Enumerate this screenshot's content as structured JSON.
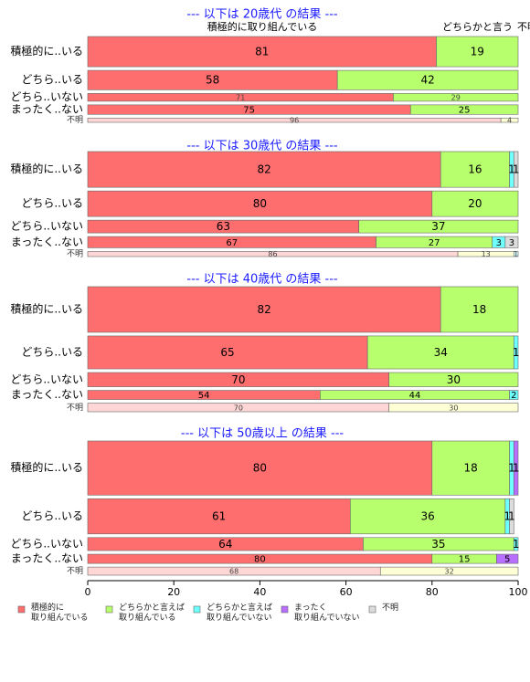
{
  "colors": {
    "seg": [
      "#ff6e6e",
      "#b8ff6e",
      "#6effff",
      "#b86eff",
      "#dcdcdc"
    ],
    "seg_light": [
      "#ffd6d6",
      "#ffffd6",
      "#d6ffff",
      "#e6d6ff",
      "#f0f0f0"
    ],
    "title": "#1a1aff"
  },
  "top_labels": [
    {
      "text": "積極的に取り組んでいる"
    },
    {
      "text": "どちらかと言う"
    },
    {
      "text": "不明"
    }
  ],
  "chart_data": {
    "type": "bar",
    "orientation": "horizontal",
    "stacked": true,
    "xlim": [
      0,
      100
    ],
    "x_ticks": [
      "0",
      "20",
      "40",
      "60",
      "80",
      "100"
    ],
    "legend": {
      "placement": "bottom",
      "entries": [
        {
          "name": "積極的に\n取り組んでいる"
        },
        {
          "name": "どちらかと言えば\n取り組んでいる"
        },
        {
          "name": "どちらかと言えば\n取り組んでいない"
        },
        {
          "name": "まったく\n取り組んでいない"
        },
        {
          "name": "不明"
        }
      ]
    },
    "panels": [
      {
        "title": "--- 以下は 20歳代 の結果 ---",
        "rows": [
          {
            "label": "積極的に..いる",
            "values": [
              81,
              19,
              0,
              0,
              0
            ],
            "weight": 7
          },
          {
            "label": "どちら..いる",
            "values": [
              58,
              42,
              0,
              0,
              0
            ],
            "weight": 4.5
          },
          {
            "label": "どちら..いない",
            "values": [
              71,
              29,
              0,
              0,
              0
            ],
            "weight": 1.8
          },
          {
            "label": "まったく..ない",
            "values": [
              75,
              25,
              0,
              0,
              0
            ],
            "weight": 2.2
          },
          {
            "label": "不明",
            "values": [
              96,
              4,
              0,
              0,
              0
            ],
            "weight": 1,
            "light": true
          }
        ]
      },
      {
        "title": "--- 以下は 30歳代 の結果 ---",
        "rows": [
          {
            "label": "積極的に..いる",
            "values": [
              82,
              16,
              1,
              0,
              1
            ],
            "weight": 7
          },
          {
            "label": "どちら..いる",
            "values": [
              80,
              20,
              0,
              0,
              0
            ],
            "weight": 5
          },
          {
            "label": "どちら..いない",
            "values": [
              63,
              37,
              0,
              0,
              0
            ],
            "weight": 2.5
          },
          {
            "label": "まったく..ない",
            "values": [
              67,
              27,
              3,
              0,
              3
            ],
            "weight": 2.2
          },
          {
            "label": "不明",
            "values": [
              86,
              13,
              1,
              0,
              0
            ],
            "weight": 1,
            "light": true
          }
        ]
      },
      {
        "title": "--- 以下は 40歳代 の結果 ---",
        "rows": [
          {
            "label": "積極的に..いる",
            "values": [
              82,
              18,
              0,
              0,
              0
            ],
            "weight": 9
          },
          {
            "label": "どちら..いる",
            "values": [
              65,
              34,
              1,
              0,
              0
            ],
            "weight": 6.5
          },
          {
            "label": "どちら..いない",
            "values": [
              70,
              30,
              0,
              0,
              0
            ],
            "weight": 2.8
          },
          {
            "label": "まったく..ない",
            "values": [
              54,
              44,
              2,
              0,
              0
            ],
            "weight": 1.8
          },
          {
            "label": "不明",
            "values": [
              70,
              30,
              0,
              0,
              0
            ],
            "weight": 1.7,
            "light": true
          }
        ]
      },
      {
        "title": "--- 以下は 50歳以上 の結果 ---",
        "rows": [
          {
            "label": "積極的に..いる",
            "values": [
              80,
              18,
              1,
              1,
              0
            ],
            "weight": 10
          },
          {
            "label": "どちら..いる",
            "values": [
              61,
              36,
              1,
              0,
              1
            ],
            "weight": 6.5
          },
          {
            "label": "どちら..いない",
            "values": [
              64,
              35,
              1,
              0,
              0
            ],
            "weight": 2.4
          },
          {
            "label": "まったく..ない",
            "values": [
              80,
              15,
              0,
              5,
              0
            ],
            "weight": 1.7
          },
          {
            "label": "不明",
            "values": [
              68,
              32,
              0,
              0,
              0
            ],
            "weight": 1.5,
            "light": true
          }
        ]
      }
    ]
  }
}
